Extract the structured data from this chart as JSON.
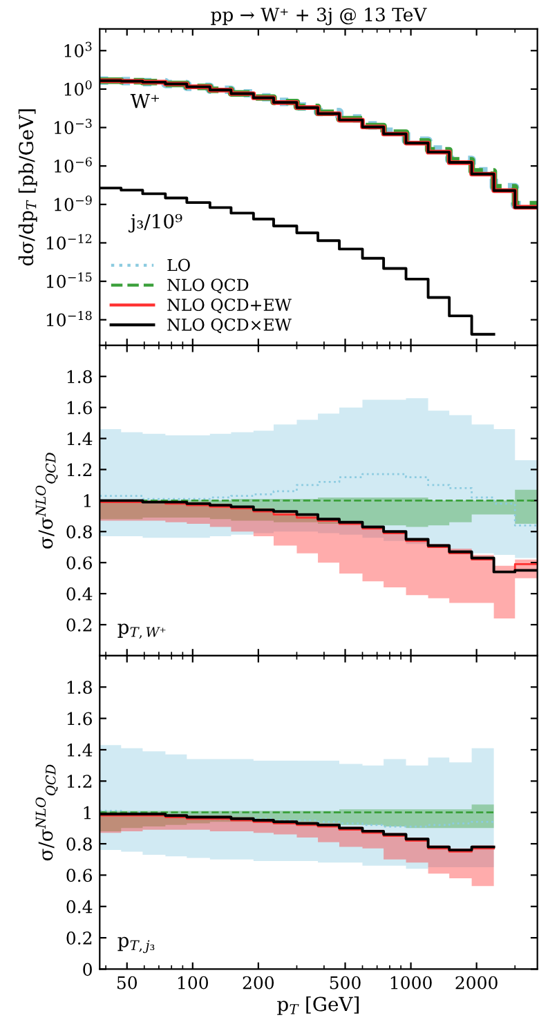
{
  "chart_data": [
    {
      "type": "step",
      "title": "pp → W⁺ + 3j @ 13 TeV",
      "ylabel": "dσ/dp$_{T}$ [pb/GeV]",
      "log": "xy",
      "grid": false,
      "legend": "bottom left",
      "tick_labels": "y",
      "x": [
        37.5,
        47,
        59,
        75,
        94,
        120,
        150,
        190,
        235,
        300,
        375,
        470,
        600,
        750,
        950,
        1200,
        1500,
        1900,
        2400,
        3000,
        3800
      ],
      "xlim": [
        37.5,
        3800
      ],
      "ylim": [
        1e-20,
        50000
      ],
      "xticks": [
        50,
        100,
        200,
        500,
        1000,
        2000
      ],
      "yticks": [
        {
          "value": 1000,
          "label": "10$^{3}$"
        },
        {
          "value": 1,
          "label": "10$^{0}$"
        },
        {
          "value": 0.001,
          "label": "10$^{−3}$"
        },
        {
          "value": 1e-06,
          "label": "10$^{−6}$"
        },
        {
          "value": 1e-09,
          "label": "10$^{−9}$"
        },
        {
          "value": 1e-12,
          "label": "10$^{−12}$"
        },
        {
          "value": 1e-15,
          "label": "10$^{−15}$"
        },
        {
          "value": 1e-18,
          "label": "10$^{−18}$"
        }
      ],
      "annotations": [
        "W⁺",
        "j₃/10⁹"
      ],
      "series": [
        {
          "name": "LO",
          "color": "#8ccbe0",
          "line_style": "dotted",
          "values": [
            4.6,
            4.2,
            3.5,
            2.5,
            1.5,
            0.89,
            0.47,
            0.23,
            0.1,
            0.044,
            0.016,
            0.0052,
            0.0015,
            0.00047,
            9.5e-05,
            1.9e-05,
            3e-06,
            3.9e-07,
            2.2e-08,
            8.8e-10,
            8.8e-10
          ]
        },
        {
          "name": "NLO QCD",
          "color": "#3aa03a",
          "line_style": "dashed",
          "values": [
            4.5,
            4.1,
            3.5,
            2.5,
            1.5,
            0.87,
            0.46,
            0.22,
            0.098,
            0.04,
            0.014,
            0.0045,
            0.0013,
            0.0004,
            8.3e-05,
            1.7e-05,
            2.8e-06,
            3.8e-07,
            2.2e-08,
            1.05e-09,
            1.05e-09
          ]
        },
        {
          "name": "NLO QCD+EW",
          "color": "#ff3030",
          "line_style": "solid",
          "values": [
            4.5,
            4.1,
            3.5,
            2.5,
            1.5,
            0.84,
            0.44,
            0.21,
            0.09,
            0.036,
            0.012,
            0.0038,
            0.0011,
            0.00031,
            6.1e-05,
            1.2e-05,
            1.8e-06,
            2.3e-07,
            1.2e-08,
            6.1e-10,
            6.1e-10
          ]
        },
        {
          "name": "NLO QCD×EW",
          "color": "#000000",
          "line_style": "solid",
          "values": [
            4.5,
            4.1,
            3.5,
            2.5,
            1.5,
            0.85,
            0.44,
            0.21,
            0.091,
            0.036,
            0.012,
            0.0039,
            0.0011,
            0.00032,
            6.2e-05,
            1.2e-05,
            1.9e-06,
            2.4e-07,
            1.2e-08,
            5.8e-10,
            5.8e-10
          ]
        },
        {
          "color": "#000000",
          "line_style": "solid",
          "x": [
            37.5,
            47,
            59,
            75,
            94,
            120,
            150,
            190,
            235,
            300,
            375,
            470,
            600,
            750,
            950,
            1200,
            1500,
            1900,
            2400
          ],
          "values": [
            1.9e-08,
            1.3e-08,
            6.8e-09,
            3.2e-09,
            1.4e-09,
            5.7e-10,
            2.1e-10,
            7.2e-11,
            2.1e-11,
            6e-12,
            1.5e-12,
            3.3e-13,
            6.3e-14,
            1e-14,
            1.5e-15,
            5.5e-17,
            2e-18,
            7.3e-20,
            7.3e-20
          ]
        }
      ]
    },
    {
      "type": "step",
      "ylabel": "σ/σ$^{NLO}$$_{QCD}$",
      "log": "x",
      "grid": false,
      "tick_labels": "y",
      "x": [
        37.5,
        47,
        59,
        75,
        94,
        120,
        150,
        190,
        235,
        300,
        375,
        470,
        600,
        750,
        950,
        1200,
        1500,
        1900,
        2400,
        3000,
        3800
      ],
      "xlim": [
        37.5,
        3800
      ],
      "ylim": [
        0,
        2
      ],
      "xticks": [
        50,
        100,
        200,
        500,
        1000,
        2000
      ],
      "yticks": [
        0.2,
        0.4,
        0.6,
        0.8,
        1,
        1.2,
        1.4,
        1.6,
        1.8
      ],
      "annotations": [
        "p$_{T,W⁺}$"
      ],
      "series": [
        {
          "color": "#8ccbe0",
          "line_style": "dotted",
          "values": [
            1.03,
            1.03,
            1.01,
            1.01,
            1.01,
            1.02,
            1.03,
            1.04,
            1.06,
            1.1,
            1.12,
            1.15,
            1.17,
            1.17,
            1.15,
            1.1,
            1.08,
            1.02,
            0.98,
            0.84,
            0.84
          ],
          "lower": [
            0.77,
            0.77,
            0.76,
            0.76,
            0.76,
            0.77,
            0.78,
            0.79,
            0.8,
            0.8,
            0.79,
            0.78,
            0.76,
            0.74,
            0.72,
            0.7,
            0.68,
            0.66,
            0.65,
            0.63,
            0.63
          ],
          "upper": [
            1.46,
            1.44,
            1.43,
            1.42,
            1.42,
            1.43,
            1.44,
            1.45,
            1.49,
            1.52,
            1.56,
            1.6,
            1.65,
            1.65,
            1.66,
            1.58,
            1.55,
            1.49,
            1.46,
            1.26,
            1.26
          ]
        },
        {
          "color": "#3aa03a",
          "line_style": "dashed",
          "values": [
            1,
            1,
            1,
            1,
            1,
            1,
            1,
            1,
            1,
            1,
            1,
            1,
            1,
            1,
            1,
            1,
            1,
            1,
            1,
            1,
            1
          ],
          "lower": [
            0.88,
            0.88,
            0.89,
            0.89,
            0.89,
            0.88,
            0.87,
            0.87,
            0.86,
            0.86,
            0.85,
            0.85,
            0.84,
            0.84,
            0.83,
            0.84,
            0.86,
            0.91,
            0.91,
            0.85,
            0.85
          ],
          "upper": [
            1.0,
            1.0,
            1.0,
            1.0,
            1.0,
            1.0,
            1.01,
            1.01,
            1.01,
            1.01,
            1.02,
            1.02,
            1.02,
            1.02,
            1.02,
            1.0,
            1.0,
            1.0,
            1.0,
            1.07,
            1.07
          ]
        },
        {
          "color": "#ff3030",
          "line_style": "solid",
          "values": [
            0.99,
            0.99,
            0.99,
            0.98,
            0.97,
            0.96,
            0.95,
            0.93,
            0.91,
            0.89,
            0.87,
            0.85,
            0.82,
            0.79,
            0.74,
            0.7,
            0.66,
            0.62,
            0.54,
            0.59,
            0.59
          ],
          "lower": [
            0.87,
            0.87,
            0.87,
            0.86,
            0.85,
            0.83,
            0.8,
            0.77,
            0.71,
            0.66,
            0.6,
            0.53,
            0.48,
            0.44,
            0.39,
            0.37,
            0.34,
            0.34,
            0.24,
            0.5,
            0.5
          ],
          "upper": [
            1.0,
            1.0,
            1.0,
            0.99,
            0.99,
            0.98,
            0.96,
            0.95,
            0.93,
            0.91,
            0.88,
            0.86,
            0.83,
            0.8,
            0.75,
            0.72,
            0.69,
            0.65,
            0.58,
            0.62,
            0.62
          ]
        },
        {
          "color": "#000000",
          "line_style": "solid",
          "values": [
            1.0,
            1.0,
            0.99,
            0.99,
            0.98,
            0.97,
            0.96,
            0.94,
            0.93,
            0.91,
            0.88,
            0.86,
            0.83,
            0.8,
            0.75,
            0.71,
            0.67,
            0.63,
            0.54,
            0.55,
            0.55
          ]
        }
      ]
    },
    {
      "type": "step",
      "ylabel": "σ/σ$^{NLO}$$_{QCD}$",
      "xlabel": "p$_{T}$ [GeV]",
      "log": "x",
      "grid": false,
      "x": [
        37.5,
        47,
        59,
        75,
        94,
        120,
        150,
        190,
        235,
        300,
        375,
        470,
        600,
        750,
        950,
        1200,
        1500,
        1900,
        2400
      ],
      "xlim": [
        37.5,
        3800
      ],
      "ylim": [
        0,
        2
      ],
      "xticks": [
        50,
        100,
        200,
        500,
        1000,
        2000
      ],
      "yticks": [
        0,
        0.2,
        0.4,
        0.6,
        0.8,
        1,
        1.2,
        1.4,
        1.6,
        1.8
      ],
      "annotations": [
        "p$_{T,j₃}$"
      ],
      "series": [
        {
          "color": "#8ccbe0",
          "line_style": "dotted",
          "values": [
            1.01,
            1.0,
            0.99,
            0.98,
            0.97,
            0.96,
            0.96,
            0.96,
            0.95,
            0.95,
            0.94,
            0.93,
            0.92,
            0.91,
            0.91,
            0.92,
            0.93,
            0.94,
            0.94
          ],
          "lower": [
            0.76,
            0.75,
            0.73,
            0.72,
            0.71,
            0.7,
            0.7,
            0.69,
            0.69,
            0.69,
            0.68,
            0.68,
            0.66,
            0.66,
            0.64,
            0.65,
            0.65,
            0.65,
            0.65
          ],
          "upper": [
            1.43,
            1.41,
            1.39,
            1.37,
            1.34,
            1.34,
            1.34,
            1.33,
            1.33,
            1.33,
            1.33,
            1.31,
            1.3,
            1.34,
            1.3,
            1.35,
            1.32,
            1.41,
            1.41
          ]
        },
        {
          "color": "#3aa03a",
          "line_style": "dashed",
          "values": [
            1,
            1,
            1,
            1,
            1,
            1,
            1,
            1,
            1,
            1,
            1,
            1,
            1,
            1,
            1,
            1,
            1,
            1,
            1
          ],
          "lower": [
            0.88,
            0.9,
            0.91,
            0.92,
            0.93,
            0.94,
            0.94,
            0.94,
            0.93,
            0.93,
            0.93,
            0.92,
            0.92,
            0.91,
            0.9,
            0.9,
            0.9,
            0.9,
            0.9
          ],
          "upper": [
            1.01,
            1.01,
            1.01,
            1.01,
            1.01,
            1.01,
            1.01,
            1.01,
            1.01,
            1.01,
            1.01,
            1.02,
            1.02,
            1.02,
            1.02,
            1.02,
            1.02,
            1.05,
            1.05
          ]
        },
        {
          "color": "#ff3030",
          "line_style": "solid",
          "values": [
            0.98,
            0.98,
            0.98,
            0.97,
            0.96,
            0.96,
            0.95,
            0.94,
            0.93,
            0.92,
            0.91,
            0.89,
            0.87,
            0.85,
            0.82,
            0.77,
            0.75,
            0.77,
            0.77
          ],
          "lower": [
            0.87,
            0.88,
            0.89,
            0.89,
            0.89,
            0.88,
            0.88,
            0.87,
            0.86,
            0.84,
            0.81,
            0.78,
            0.77,
            0.7,
            0.68,
            0.61,
            0.58,
            0.53,
            0.53
          ],
          "upper": [
            1.0,
            1.0,
            1.0,
            0.99,
            0.98,
            0.98,
            0.97,
            0.96,
            0.95,
            0.94,
            0.93,
            0.91,
            0.89,
            0.87,
            0.84,
            0.79,
            0.77,
            0.79,
            0.79
          ]
        },
        {
          "color": "#000000",
          "line_style": "solid",
          "values": [
            0.99,
            0.99,
            0.99,
            0.98,
            0.97,
            0.97,
            0.96,
            0.95,
            0.94,
            0.93,
            0.92,
            0.9,
            0.88,
            0.86,
            0.83,
            0.78,
            0.76,
            0.78,
            0.78
          ]
        }
      ]
    }
  ]
}
